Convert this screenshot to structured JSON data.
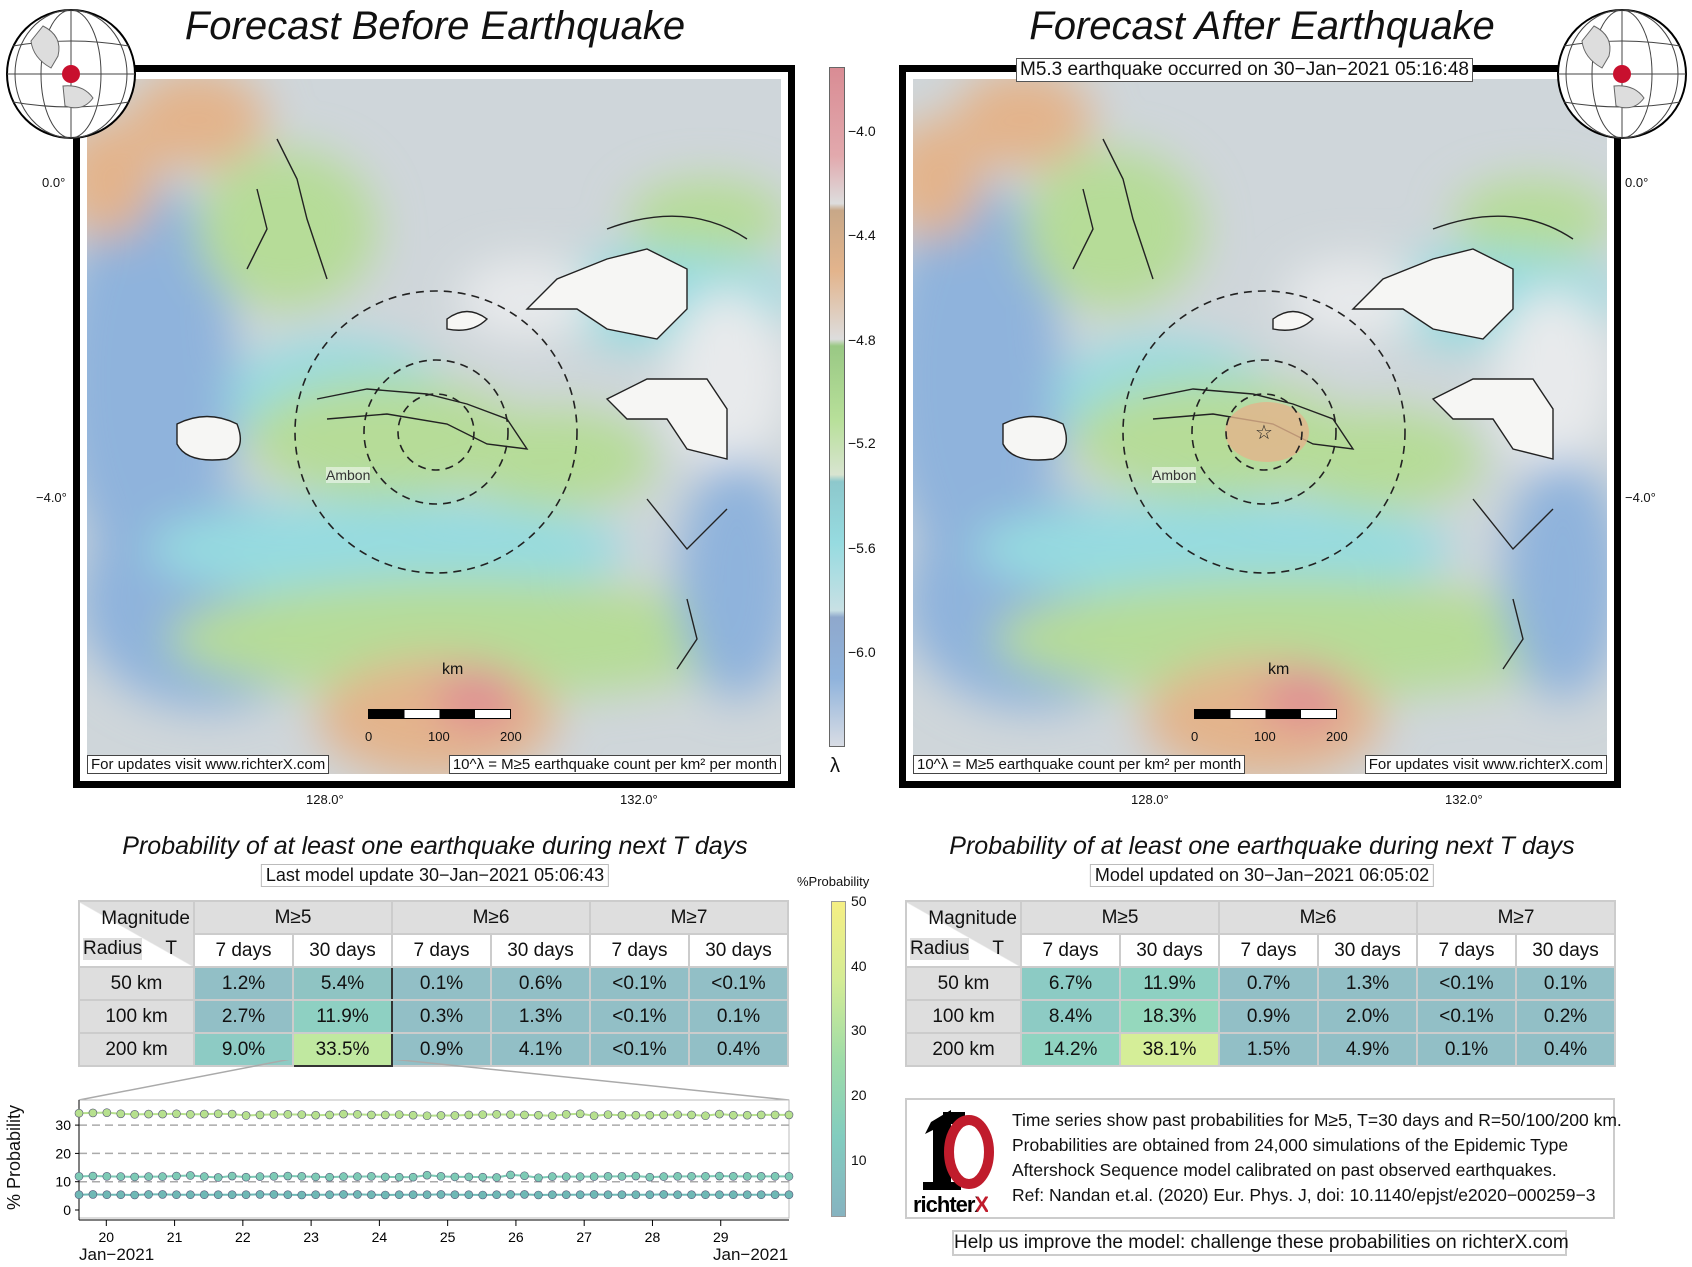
{
  "left_panel": {
    "title": "Forecast Before Earthquake",
    "footer_link": "For updates visit www.richterX.com",
    "footer_unit": "10^λ = M≥5 earthquake count per km² per month",
    "city": "Ambon",
    "scale": {
      "unit": "km",
      "ticks": [
        "0",
        "100",
        "200"
      ]
    },
    "lat_labels": [
      "0.0°",
      "−4.0°"
    ],
    "lon_labels": [
      "128.0°",
      "132.0°"
    ],
    "prob_title": "Probability of at least one earthquake during next T days",
    "update": "Last model update 30−Jan−2021 05:06:43",
    "table": {
      "corner_top": "Magnitude",
      "corner_r": "Radius",
      "corner_t": "T",
      "mags": [
        "M≥5",
        "M≥6",
        "M≥7"
      ],
      "periods": [
        "7 days",
        "30 days",
        "7 days",
        "30 days",
        "7 days",
        "30 days"
      ],
      "rows": [
        {
          "radius": "50 km",
          "values": [
            "1.2%",
            "5.4%",
            "0.1%",
            "0.6%",
            "<0.1%",
            "<0.1%"
          ],
          "colors": [
            "#92bfc6",
            "#8fc4c3",
            "#92bfc6",
            "#92bfc6",
            "#92bfc6",
            "#92bfc6"
          ]
        },
        {
          "radius": "100 km",
          "values": [
            "2.7%",
            "11.9%",
            "0.3%",
            "1.3%",
            "<0.1%",
            "0.1%"
          ],
          "colors": [
            "#92bfc6",
            "#8ed0c2",
            "#92bfc6",
            "#92bfc6",
            "#92bfc6",
            "#92bfc6"
          ]
        },
        {
          "radius": "200 km",
          "values": [
            "9.0%",
            "33.5%",
            "0.9%",
            "4.1%",
            "<0.1%",
            "0.4%"
          ],
          "colors": [
            "#8dcbc4",
            "#c0e8a0",
            "#92bfc6",
            "#92bfc6",
            "#92bfc6",
            "#92bfc6"
          ]
        }
      ]
    }
  },
  "right_panel": {
    "title": "Forecast After Earthquake",
    "event": "M5.3 earthquake occurred on 30−Jan−2021 05:16:48",
    "footer_link": "For updates visit www.richterX.com",
    "footer_unit": "10^λ = M≥5 earthquake count per km² per month",
    "city": "Ambon",
    "scale": {
      "unit": "km",
      "ticks": [
        "0",
        "100",
        "200"
      ]
    },
    "lat_labels": [
      "0.0°",
      "−4.0°"
    ],
    "lon_labels": [
      "128.0°",
      "132.0°"
    ],
    "prob_title": "Probability of at least one earthquake during next T days",
    "update": "Model updated on 30−Jan−2021 06:05:02",
    "table": {
      "corner_top": "Magnitude",
      "corner_r": "Radius",
      "corner_t": "T",
      "mags": [
        "M≥5",
        "M≥6",
        "M≥7"
      ],
      "periods": [
        "7 days",
        "30 days",
        "7 days",
        "30 days",
        "7 days",
        "30 days"
      ],
      "rows": [
        {
          "radius": "50 km",
          "values": [
            "6.7%",
            "11.9%",
            "0.7%",
            "1.3%",
            "<0.1%",
            "0.1%"
          ],
          "colors": [
            "#8ccbc4",
            "#8ed0c2",
            "#92bfc6",
            "#92bfc6",
            "#92bfc6",
            "#92bfc6"
          ]
        },
        {
          "radius": "100 km",
          "values": [
            "8.4%",
            "18.3%",
            "0.9%",
            "2.0%",
            "<0.1%",
            "0.2%"
          ],
          "colors": [
            "#8dcbc4",
            "#95d8bd",
            "#92bfc6",
            "#92bfc6",
            "#92bfc6",
            "#92bfc6"
          ]
        },
        {
          "radius": "200 km",
          "values": [
            "14.2%",
            "38.1%",
            "1.5%",
            "4.9%",
            "0.1%",
            "0.4%"
          ],
          "colors": [
            "#90d4c1",
            "#d5ee98",
            "#92bfc6",
            "#92bfc6",
            "#92bfc6",
            "#92bfc6"
          ]
        }
      ]
    },
    "info": [
      "Time series show past probabilities for M≥5, T=30 days and R=50/100/200 km.",
      "Probabilities are obtained from 24,000 simulations of the Epidemic Type",
      "Aftershock Sequence model calibrated on past observed earthquakes.",
      "Ref: Nandan et.al. (2020) Eur. Phys. J, doi: 10.1140/epjst/e2020−000259−3"
    ],
    "logo_text": "richterX",
    "help": "Help us improve the model: challenge these probabilities on richterX.com"
  },
  "lambda_colorbar": {
    "symbol": "λ",
    "ticks": [
      "−4.0",
      "−4.4",
      "−4.8",
      "−5.2",
      "−5.6",
      "−6.0"
    ],
    "colors": [
      "#e08a94",
      "#e2b48c",
      "#9fd48a",
      "#8fd8dc",
      "#8fb3dc"
    ]
  },
  "prob_colorbar": {
    "label": "%Probability",
    "ticks": [
      "50",
      "40",
      "30",
      "20",
      "10"
    ]
  },
  "chart_data": {
    "type": "scatter",
    "ylabel": "% Probability",
    "ylim": [
      -2,
      38
    ],
    "yticks": [
      "0",
      "10",
      "20",
      "30"
    ],
    "xticks": [
      "20",
      "21",
      "22",
      "23",
      "24",
      "25",
      "26",
      "27",
      "28",
      "29"
    ],
    "xlabel_left": "Jan−2021",
    "xlabel_right": "Jan−2021",
    "x_range_days": [
      19.6,
      30.0
    ],
    "gridlines": [
      10,
      20,
      30
    ],
    "series": [
      {
        "name": "R=200 km",
        "color": "#b6e08e",
        "values": [
          34.2,
          34.3,
          34.4,
          34.0,
          33.8,
          33.9,
          33.9,
          34.0,
          33.8,
          33.9,
          34.0,
          33.9,
          33.4,
          33.6,
          33.8,
          33.8,
          33.7,
          33.5,
          33.6,
          33.9,
          33.8,
          33.6,
          33.6,
          33.7,
          33.5,
          33.3,
          33.4,
          33.4,
          33.6,
          33.7,
          33.8,
          33.7,
          33.6,
          33.5,
          33.3,
          33.8,
          34.0,
          33.3,
          33.7,
          33.5,
          33.5,
          33.5,
          33.6,
          33.7,
          33.6,
          33.3,
          33.9,
          33.5,
          33.5,
          33.6,
          33.6,
          33.6
        ]
      },
      {
        "name": "R=100 km",
        "color": "#7dcab5",
        "values": [
          11.9,
          12.0,
          11.9,
          11.8,
          11.7,
          11.8,
          11.8,
          12.0,
          12.2,
          11.8,
          11.5,
          12.0,
          11.6,
          11.8,
          11.9,
          12.0,
          11.9,
          11.7,
          11.6,
          11.8,
          11.8,
          11.9,
          11.7,
          11.6,
          11.6,
          12.3,
          11.9,
          11.7,
          11.7,
          11.6,
          11.5,
          12.4,
          12.1,
          11.4,
          11.8,
          11.8,
          11.8,
          11.8,
          11.9,
          11.9,
          12.0,
          11.6,
          11.8,
          11.9,
          11.9,
          11.9,
          12.0,
          11.9,
          11.9,
          11.9,
          11.9,
          11.9
        ]
      },
      {
        "name": "R=50 km",
        "color": "#6fb8b5",
        "values": [
          5.4,
          5.5,
          5.4,
          5.4,
          5.3,
          5.5,
          5.5,
          5.4,
          5.4,
          5.4,
          5.4,
          5.4,
          5.4,
          5.5,
          5.5,
          5.4,
          5.3,
          5.4,
          5.4,
          5.5,
          5.5,
          5.4,
          5.3,
          5.4,
          5.4,
          5.4,
          5.5,
          5.4,
          5.4,
          5.3,
          5.4,
          5.5,
          5.5,
          5.3,
          5.4,
          5.4,
          5.4,
          5.5,
          5.4,
          5.4,
          5.4,
          5.4,
          5.5,
          5.4,
          5.4,
          5.4,
          5.4,
          5.4,
          5.4,
          5.4,
          5.4,
          5.4
        ]
      }
    ]
  }
}
